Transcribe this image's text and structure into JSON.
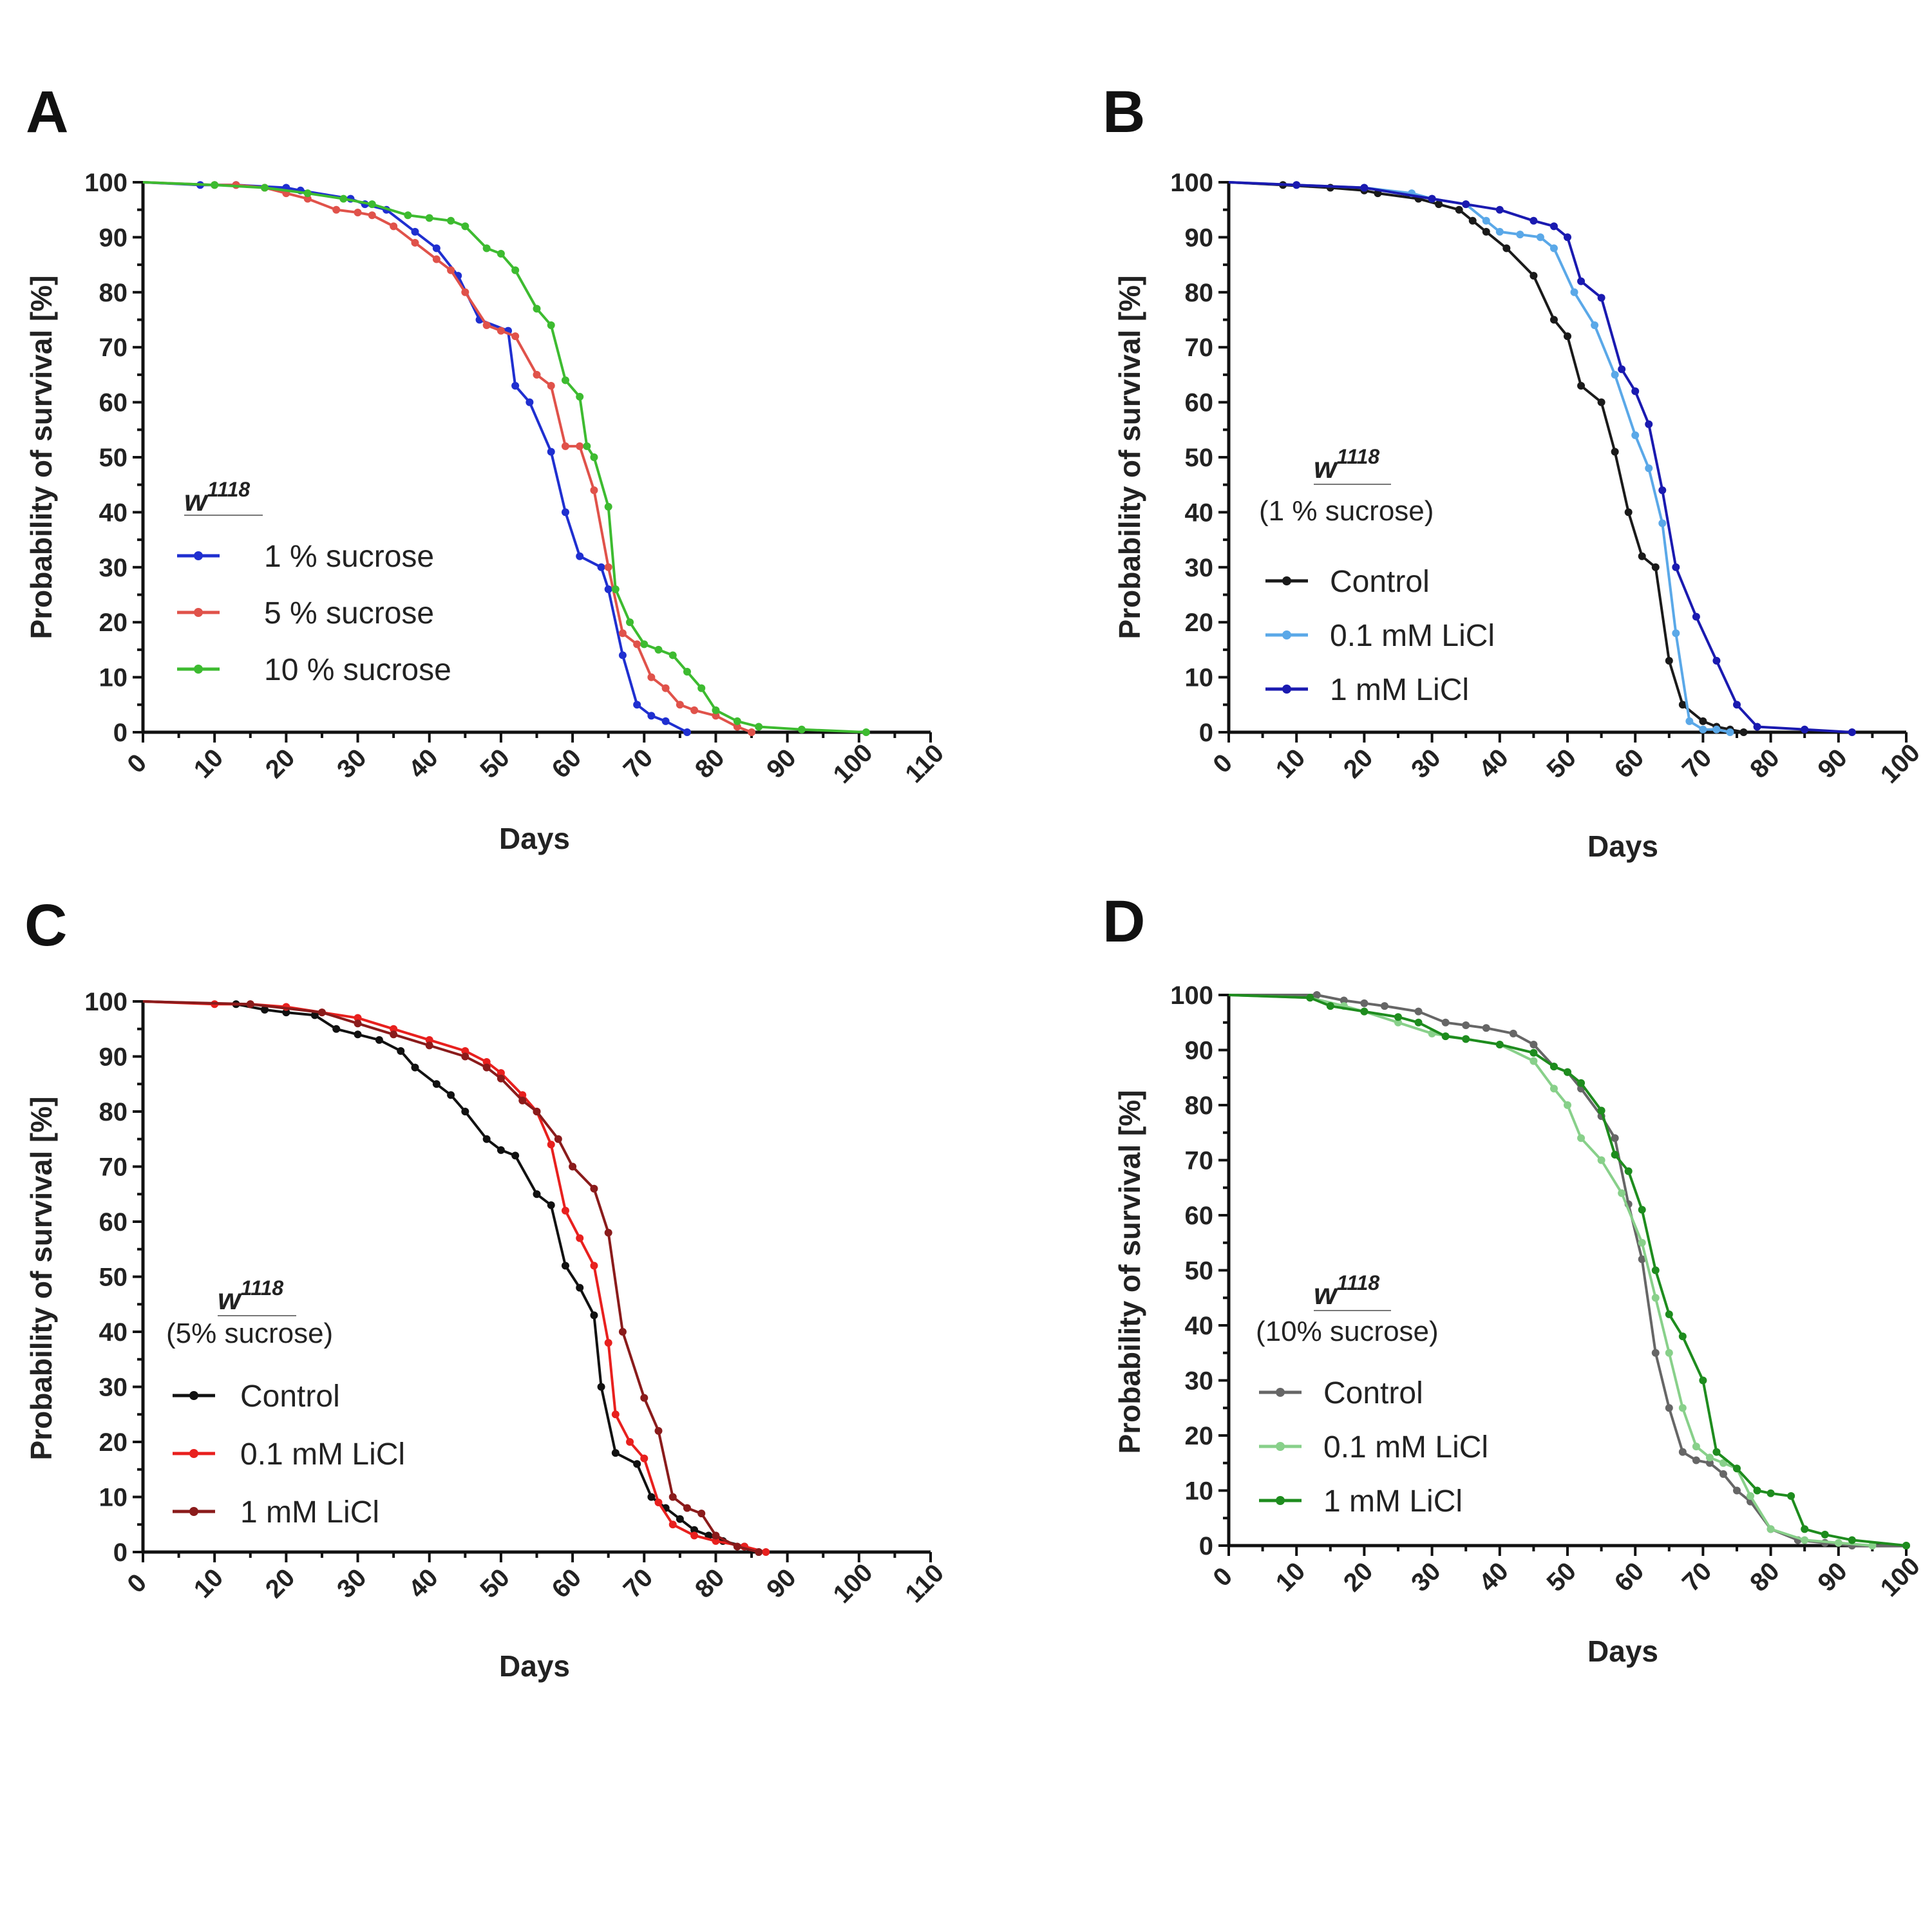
{
  "figure": {
    "background": "#ffffff",
    "axis_color": "#111111"
  },
  "chart_data": [
    {
      "type": "line",
      "panel": "A",
      "title": "",
      "xlabel": "Days",
      "ylabel": "Probability of survival [%]",
      "xlim": [
        0,
        110
      ],
      "ylim": [
        0,
        100
      ],
      "xticks": [
        "0",
        "10",
        "20",
        "30",
        "40",
        "50",
        "60",
        "70",
        "80",
        "90",
        "100",
        "110"
      ],
      "yticks": [
        "0",
        "10",
        "20",
        "30",
        "40",
        "50",
        "60",
        "70",
        "80",
        "90",
        "100"
      ],
      "legend": {
        "title": "w",
        "superscript": "1118",
        "subtitle": ""
      },
      "series": [
        {
          "name": "1 % sucrose",
          "color": "#1f2fd0",
          "x": [
            0,
            8,
            13,
            20,
            22,
            29,
            31,
            34,
            38,
            41,
            44,
            47,
            51,
            52,
            54,
            57,
            59,
            61,
            64,
            65,
            67,
            69,
            71,
            73,
            76
          ],
          "y": [
            100,
            99.5,
            99.5,
            99,
            98.5,
            97,
            96,
            95,
            91,
            88,
            83,
            75,
            73,
            63,
            60,
            51,
            40,
            32,
            30,
            26,
            14,
            5,
            3,
            2,
            0
          ]
        },
        {
          "name": "5 % sucrose",
          "color": "#e0524a",
          "x": [
            0,
            10,
            13,
            17,
            20,
            23,
            27,
            30,
            32,
            35,
            38,
            41,
            43,
            45,
            48,
            50,
            52,
            55,
            57,
            59,
            61,
            63,
            65,
            67,
            69,
            71,
            73,
            75,
            77,
            80,
            83,
            85
          ],
          "y": [
            100,
            99.5,
            99.5,
            99,
            98,
            97,
            95,
            94.5,
            94,
            92,
            89,
            86,
            84,
            80,
            74,
            73,
            72,
            65,
            63,
            52,
            52,
            44,
            30,
            18,
            16,
            10,
            8,
            5,
            4,
            3,
            1,
            0
          ]
        },
        {
          "name": "10 % sucrose",
          "color": "#3dbb30",
          "x": [
            0,
            10,
            17,
            23,
            28,
            32,
            37,
            40,
            43,
            45,
            48,
            50,
            52,
            55,
            57,
            59,
            61,
            62,
            63,
            65,
            66,
            68,
            70,
            72,
            74,
            76,
            78,
            80,
            83,
            86,
            92,
            101
          ],
          "y": [
            100,
            99.5,
            99,
            98,
            97,
            96,
            94,
            93.5,
            93,
            92,
            88,
            87,
            84,
            77,
            74,
            64,
            61,
            52,
            50,
            41,
            26,
            20,
            16,
            15,
            14,
            11,
            8,
            4,
            2,
            1,
            0.5,
            0
          ]
        }
      ]
    },
    {
      "type": "line",
      "panel": "B",
      "title": "",
      "xlabel": "Days",
      "ylabel": "Probability of survival [%]",
      "xlim": [
        0,
        100
      ],
      "ylim": [
        0,
        100
      ],
      "xticks": [
        "0",
        "10",
        "20",
        "30",
        "40",
        "50",
        "60",
        "70",
        "80",
        "90",
        "100"
      ],
      "yticks": [
        "0",
        "10",
        "20",
        "30",
        "40",
        "50",
        "60",
        "70",
        "80",
        "90",
        "100"
      ],
      "legend": {
        "title": "w",
        "superscript": "1118",
        "subtitle": "(1 % sucrose)"
      },
      "series": [
        {
          "name": "Control",
          "color": "#1a1a1a",
          "x": [
            0,
            8,
            15,
            20,
            22,
            28,
            31,
            34,
            36,
            38,
            41,
            45,
            48,
            50,
            52,
            55,
            57,
            59,
            61,
            63,
            65,
            67,
            70,
            72,
            74,
            76
          ],
          "y": [
            100,
            99.5,
            99,
            98.5,
            98,
            97,
            96,
            95,
            93,
            91,
            88,
            83,
            75,
            72,
            63,
            60,
            51,
            40,
            32,
            30,
            13,
            5,
            2,
            1,
            0.5,
            0
          ]
        },
        {
          "name": "0.1 mM LiCl",
          "color": "#5aa8e8",
          "x": [
            0,
            10,
            20,
            27,
            30,
            35,
            38,
            40,
            43,
            46,
            48,
            51,
            54,
            57,
            60,
            62,
            64,
            66,
            68,
            70,
            72,
            74
          ],
          "y": [
            100,
            99.5,
            99,
            98,
            97,
            96,
            93,
            91,
            90.5,
            90,
            88,
            80,
            74,
            65,
            54,
            48,
            38,
            18,
            2,
            0.5,
            0.5,
            0
          ]
        },
        {
          "name": "1 mM LiCl",
          "color": "#1a1ab0",
          "x": [
            0,
            10,
            20,
            30,
            35,
            40,
            45,
            48,
            50,
            52,
            55,
            58,
            60,
            62,
            64,
            66,
            69,
            72,
            75,
            78,
            85,
            92
          ],
          "y": [
            100,
            99.5,
            99,
            97,
            96,
            95,
            93,
            92,
            90,
            82,
            79,
            66,
            62,
            56,
            44,
            30,
            21,
            13,
            5,
            1,
            0.5,
            0
          ]
        }
      ]
    },
    {
      "type": "line",
      "panel": "C",
      "title": "",
      "xlabel": "Days",
      "ylabel": "Probability of survival [%]",
      "xlim": [
        0,
        110
      ],
      "ylim": [
        0,
        100
      ],
      "xticks": [
        "0",
        "10",
        "20",
        "30",
        "40",
        "50",
        "60",
        "70",
        "80",
        "90",
        "100",
        "110"
      ],
      "yticks": [
        "0",
        "10",
        "20",
        "30",
        "40",
        "50",
        "60",
        "70",
        "80",
        "90",
        "100"
      ],
      "legend": {
        "title": "w",
        "superscript": "1118",
        "subtitle": "(5% sucrose)"
      },
      "series": [
        {
          "name": "Control",
          "color": "#111111",
          "x": [
            0,
            13,
            17,
            20,
            24,
            27,
            30,
            33,
            36,
            38,
            41,
            43,
            45,
            48,
            50,
            52,
            55,
            57,
            59,
            61,
            63,
            64,
            66,
            69,
            71,
            73,
            75,
            77,
            79,
            81,
            84,
            86
          ],
          "y": [
            100,
            99.5,
            98.5,
            98,
            97.5,
            95,
            94,
            93,
            91,
            88,
            85,
            83,
            80,
            75,
            73,
            72,
            65,
            63,
            52,
            48,
            43,
            30,
            18,
            16,
            10,
            8,
            6,
            4,
            3,
            2,
            1,
            0
          ]
        },
        {
          "name": "0.1 mM LiCl",
          "color": "#e8201e",
          "x": [
            0,
            10,
            15,
            20,
            25,
            30,
            35,
            40,
            45,
            48,
            50,
            53,
            55,
            57,
            59,
            61,
            63,
            65,
            66,
            68,
            70,
            72,
            74,
            77,
            80,
            84,
            87
          ],
          "y": [
            100,
            99.5,
            99.5,
            99,
            98,
            97,
            95,
            93,
            91,
            89,
            87,
            83,
            80,
            74,
            62,
            57,
            52,
            38,
            25,
            20,
            17,
            9,
            5,
            3,
            2,
            1,
            0
          ]
        },
        {
          "name": "1 mM LiCl",
          "color": "#8a1b1b",
          "x": [
            0,
            15,
            25,
            30,
            35,
            40,
            45,
            48,
            50,
            53,
            55,
            58,
            60,
            63,
            65,
            67,
            70,
            72,
            74,
            76,
            78,
            80,
            83,
            86
          ],
          "y": [
            100,
            99.5,
            98,
            96,
            94,
            92,
            90,
            88,
            86,
            82,
            80,
            75,
            70,
            66,
            58,
            40,
            28,
            22,
            10,
            8,
            7,
            3,
            1,
            0
          ]
        }
      ]
    },
    {
      "type": "line",
      "panel": "D",
      "title": "",
      "xlabel": "Days",
      "ylabel": "Probability of survival [%]",
      "xlim": [
        0,
        100
      ],
      "ylim": [
        0,
        100
      ],
      "xticks": [
        "0",
        "10",
        "20",
        "30",
        "40",
        "50",
        "60",
        "70",
        "80",
        "90",
        "100"
      ],
      "yticks": [
        "0",
        "10",
        "20",
        "30",
        "40",
        "50",
        "60",
        "70",
        "80",
        "90",
        "100"
      ],
      "legend": {
        "title": "w",
        "superscript": "1118",
        "subtitle": "(10% sucrose)"
      },
      "series": [
        {
          "name": "Control",
          "color": "#666666",
          "x": [
            0,
            13,
            17,
            20,
            23,
            28,
            32,
            35,
            38,
            42,
            45,
            48,
            50,
            52,
            55,
            57,
            59,
            61,
            63,
            65,
            67,
            69,
            71,
            73,
            75,
            77,
            80,
            84,
            88,
            92,
            100
          ],
          "y": [
            100,
            100,
            99,
            98.5,
            98,
            97,
            95,
            94.5,
            94,
            93,
            91,
            87,
            86,
            83,
            78,
            74,
            62,
            52,
            35,
            25,
            17,
            15.5,
            15,
            13,
            10,
            8,
            3,
            1,
            0.5,
            0,
            0
          ]
        },
        {
          "name": "0.1 mM LiCl",
          "color": "#88d08a",
          "x": [
            0,
            12,
            17,
            20,
            25,
            30,
            35,
            40,
            45,
            48,
            50,
            52,
            55,
            58,
            61,
            63,
            65,
            67,
            69,
            71,
            73,
            75,
            77,
            80,
            85,
            90,
            95
          ],
          "y": [
            100,
            99.5,
            98,
            97,
            95,
            93,
            92,
            91,
            88,
            83,
            80,
            74,
            70,
            64,
            55,
            45,
            35,
            25,
            18,
            16,
            15,
            14,
            9,
            3,
            1,
            0.5,
            0
          ]
        },
        {
          "name": "1 mM LiCl",
          "color": "#1e8c1e",
          "x": [
            0,
            12,
            15,
            20,
            25,
            28,
            32,
            35,
            40,
            45,
            48,
            50,
            52,
            55,
            57,
            59,
            61,
            63,
            65,
            67,
            70,
            72,
            75,
            78,
            80,
            83,
            85,
            88,
            92,
            100
          ],
          "y": [
            100,
            99.5,
            98,
            97,
            96,
            95,
            92.5,
            92,
            91,
            89.5,
            87,
            86,
            84,
            79,
            71,
            68,
            61,
            50,
            42,
            38,
            30,
            17,
            14,
            10,
            9.5,
            9,
            3,
            2,
            1,
            0
          ]
        }
      ]
    }
  ]
}
